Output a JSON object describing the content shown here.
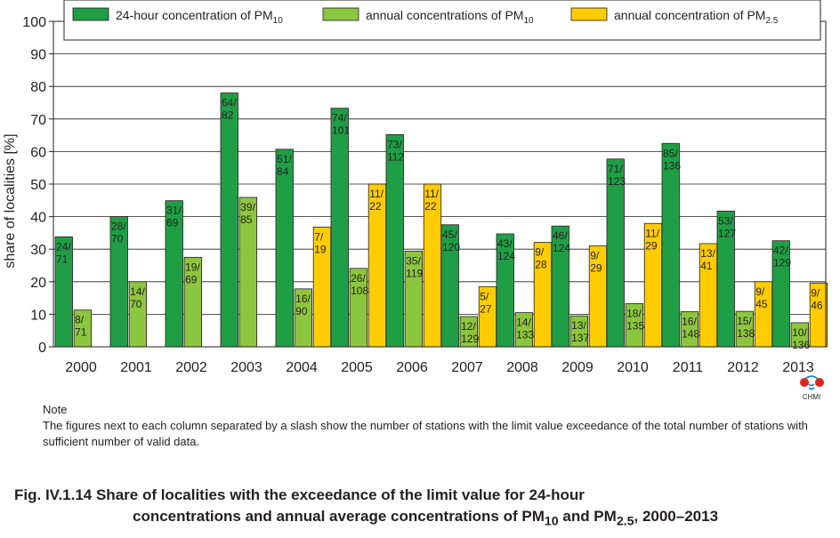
{
  "chart_data": {
    "type": "bar",
    "ylabel": "share of localities [%]",
    "ylim": [
      0,
      100
    ],
    "yticks": [
      0,
      10,
      20,
      30,
      40,
      50,
      60,
      70,
      80,
      90,
      100
    ],
    "grid": true,
    "legend_position": "top",
    "categories": [
      "2000",
      "2001",
      "2002",
      "2003",
      "2004",
      "2005",
      "2006",
      "2007",
      "2008",
      "2009",
      "2010",
      "2011",
      "2012",
      "2013"
    ],
    "series": [
      {
        "name": "24-hour concentration of PM",
        "name_sub": "10",
        "color": "#1f9e45",
        "values": [
          33.8,
          40.0,
          44.9,
          78.0,
          60.7,
          73.3,
          65.2,
          37.5,
          34.7,
          37.1,
          57.7,
          62.5,
          41.7,
          32.6
        ],
        "labels": [
          [
            "24/",
            "71"
          ],
          [
            "28/",
            "70"
          ],
          [
            "31/",
            "69"
          ],
          [
            "64/",
            "82"
          ],
          [
            "51/",
            "84"
          ],
          [
            "74/",
            "101"
          ],
          [
            "73/",
            "112"
          ],
          [
            "45/",
            "120"
          ],
          [
            "43/",
            "124"
          ],
          [
            "46/",
            "124"
          ],
          [
            "71/",
            "123"
          ],
          [
            "85/",
            "136"
          ],
          [
            "53/",
            "127"
          ],
          [
            "42/",
            "129"
          ]
        ]
      },
      {
        "name": "annual concentrations of PM",
        "name_sub": "10",
        "color": "#8cc63f",
        "values": [
          11.3,
          20.0,
          27.5,
          45.9,
          17.8,
          24.1,
          29.4,
          9.3,
          10.5,
          9.5,
          13.3,
          10.8,
          10.9,
          7.4
        ],
        "labels": [
          [
            "8/",
            "71"
          ],
          [
            "14/",
            "70"
          ],
          [
            "19/",
            "69"
          ],
          [
            "39/",
            "85"
          ],
          [
            "16/",
            "90"
          ],
          [
            "26/",
            "108"
          ],
          [
            "35/",
            "119"
          ],
          [
            "12/",
            "129"
          ],
          [
            "14/",
            "133"
          ],
          [
            "13/",
            "137"
          ],
          [
            "18/",
            "135"
          ],
          [
            "16/",
            "148"
          ],
          [
            "15/",
            "138"
          ],
          [
            "10/",
            "136"
          ]
        ]
      },
      {
        "name": "annual concentration of PM",
        "name_sub": "2.5",
        "color": "#ffcc00",
        "values": [
          null,
          null,
          null,
          null,
          36.8,
          50.0,
          50.0,
          18.5,
          32.1,
          31.0,
          37.9,
          31.7,
          20.0,
          19.6
        ],
        "labels": [
          null,
          null,
          null,
          null,
          [
            "7/",
            "19"
          ],
          [
            "11/",
            "22"
          ],
          [
            "11/",
            "22"
          ],
          [
            "5/",
            "27"
          ],
          [
            "9/",
            "28"
          ],
          [
            "9/",
            "29"
          ],
          [
            "11/",
            "29"
          ],
          [
            "13/",
            "41"
          ],
          [
            "9/",
            "45"
          ],
          [
            "9/",
            "46"
          ]
        ]
      }
    ]
  },
  "logo": {
    "name": "CHMI"
  },
  "note": {
    "title": "Note",
    "text": "The figures next to each column separated by a slash show the number of stations with the limit value exceedance of the total number of stations with sufficient number of valid data."
  },
  "caption": {
    "line1": "Fig. IV.1.14  Share of localities with the exceedance of the limit value for 24-hour",
    "line2_a": "concentrations and annual average concentrations of PM",
    "line2_sub1": "10",
    "line2_b": "  and PM",
    "line2_sub2": "2.5",
    "line2_c": ", 2000–2013"
  }
}
